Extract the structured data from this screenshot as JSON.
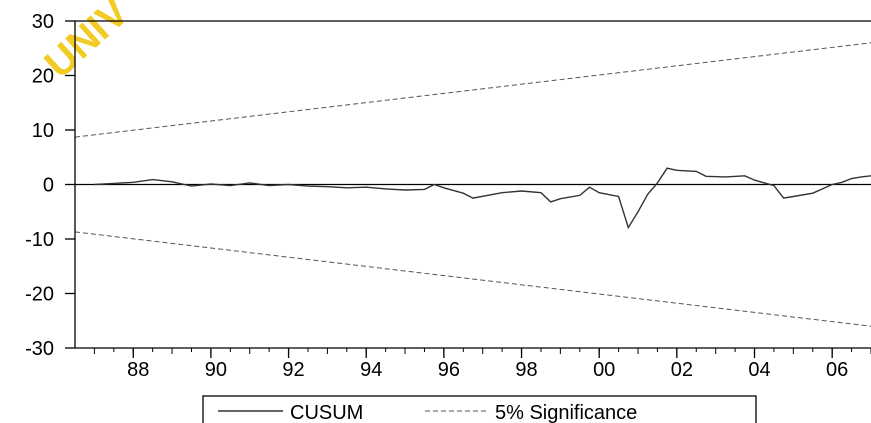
{
  "watermark": "UNIV",
  "chart_data": {
    "type": "line",
    "title": "",
    "xlabel": "",
    "ylabel": "",
    "xlim": [
      1986.5,
      2007.0
    ],
    "ylim": [
      -30,
      30
    ],
    "y_ticks": [
      30,
      20,
      10,
      0,
      -10,
      -20,
      -30
    ],
    "x_ticks": [
      {
        "label": "88",
        "year": 1988
      },
      {
        "label": "90",
        "year": 1990
      },
      {
        "label": "92",
        "year": 1992
      },
      {
        "label": "94",
        "year": 1994
      },
      {
        "label": "96",
        "year": 1996
      },
      {
        "label": "98",
        "year": 1998
      },
      {
        "label": "00",
        "year": 2000
      },
      {
        "label": "02",
        "year": 2002
      },
      {
        "label": "04",
        "year": 2004
      },
      {
        "label": "06",
        "year": 2006
      }
    ],
    "grid": false,
    "zero_line": true,
    "legend_position": "bottom-center",
    "series": [
      {
        "name": "CUSUM",
        "style": "solid",
        "color": "#333333",
        "points": [
          [
            1987.0,
            0.0
          ],
          [
            1987.5,
            0.2
          ],
          [
            1988.0,
            0.4
          ],
          [
            1988.5,
            0.9
          ],
          [
            1989.0,
            0.5
          ],
          [
            1989.5,
            -0.3
          ],
          [
            1990.0,
            0.1
          ],
          [
            1990.5,
            -0.2
          ],
          [
            1991.0,
            0.3
          ],
          [
            1991.5,
            -0.2
          ],
          [
            1992.0,
            0.0
          ],
          [
            1992.5,
            -0.3
          ],
          [
            1993.0,
            -0.4
          ],
          [
            1993.5,
            -0.6
          ],
          [
            1994.0,
            -0.5
          ],
          [
            1994.5,
            -0.8
          ],
          [
            1995.0,
            -1.0
          ],
          [
            1995.5,
            -0.9
          ],
          [
            1995.75,
            0.0
          ],
          [
            1996.0,
            -0.6
          ],
          [
            1996.5,
            -1.6
          ],
          [
            1996.75,
            -2.5
          ],
          [
            1997.5,
            -1.5
          ],
          [
            1998.0,
            -1.2
          ],
          [
            1998.5,
            -1.5
          ],
          [
            1998.75,
            -3.2
          ],
          [
            1999.0,
            -2.6
          ],
          [
            1999.5,
            -2.0
          ],
          [
            1999.75,
            -0.5
          ],
          [
            2000.0,
            -1.5
          ],
          [
            2000.5,
            -2.2
          ],
          [
            2000.75,
            -7.9
          ],
          [
            2001.0,
            -5.0
          ],
          [
            2001.25,
            -1.8
          ],
          [
            2001.5,
            0.3
          ],
          [
            2001.75,
            3.0
          ],
          [
            2002.0,
            2.6
          ],
          [
            2002.5,
            2.4
          ],
          [
            2002.75,
            1.5
          ],
          [
            2003.25,
            1.4
          ],
          [
            2003.75,
            1.6
          ],
          [
            2004.0,
            0.8
          ],
          [
            2004.5,
            -0.2
          ],
          [
            2004.75,
            -2.5
          ],
          [
            2005.0,
            -2.2
          ],
          [
            2005.5,
            -1.6
          ],
          [
            2006.0,
            0.0
          ],
          [
            2006.25,
            0.4
          ],
          [
            2006.5,
            1.1
          ],
          [
            2006.75,
            1.4
          ],
          [
            2007.0,
            1.6
          ]
        ]
      },
      {
        "name": "5% Significance",
        "style": "dashed",
        "color": "#555555",
        "points": [
          [
            1986.5,
            8.7
          ],
          [
            2007.0,
            26.0
          ]
        ]
      },
      {
        "name": "5% Significance lower",
        "style": "dashed",
        "color": "#555555",
        "points": [
          [
            1986.5,
            -8.7
          ],
          [
            2007.0,
            -26.0
          ]
        ]
      }
    ],
    "legend": [
      {
        "label": "CUSUM",
        "style": "solid"
      },
      {
        "label": "5% Significance",
        "style": "dashed"
      }
    ]
  }
}
